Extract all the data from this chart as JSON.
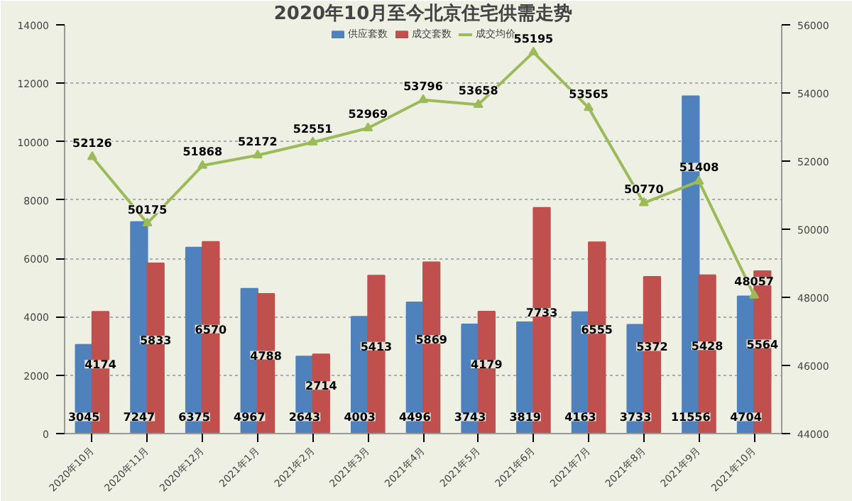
{
  "chart_data": {
    "type": "bar",
    "title": "2020年10月至今北京住宅供需走势",
    "categories": [
      "2020年10月",
      "2020年11月",
      "2020年12月",
      "2021年1月",
      "2021年2月",
      "2021年3月",
      "2021年4月",
      "2021年5月",
      "2021年6月",
      "2021年7月",
      "2021年8月",
      "2021年9月",
      "2021年10月"
    ],
    "series": [
      {
        "name": "供应套数",
        "color": "#4f81bd",
        "values": [
          3045,
          7247,
          6375,
          4967,
          2643,
          4003,
          4496,
          3743,
          3819,
          4163,
          3733,
          11556,
          4704
        ]
      },
      {
        "name": "成交套数",
        "color": "#c0504d",
        "values": [
          4174,
          5833,
          6570,
          4788,
          2714,
          5413,
          5869,
          4179,
          7733,
          6555,
          5372,
          5428,
          5564
        ]
      },
      {
        "name": "成交均价",
        "color": "#9bbb59",
        "type": "line",
        "axis": "y2",
        "marker": "triangle",
        "values": [
          52126,
          50175,
          51868,
          52172,
          52551,
          52969,
          53796,
          53658,
          55195,
          53565,
          50770,
          51408,
          48057
        ]
      }
    ],
    "ylim": [
      0,
      14000
    ],
    "yticks": [
      0,
      2000,
      4000,
      6000,
      8000,
      10000,
      12000,
      14000
    ],
    "y2lim": [
      44000,
      56000
    ],
    "y2ticks": [
      44000,
      46000,
      48000,
      50000,
      52000,
      54000,
      56000
    ],
    "grid": "y",
    "legend": "top",
    "data_labels": true
  }
}
